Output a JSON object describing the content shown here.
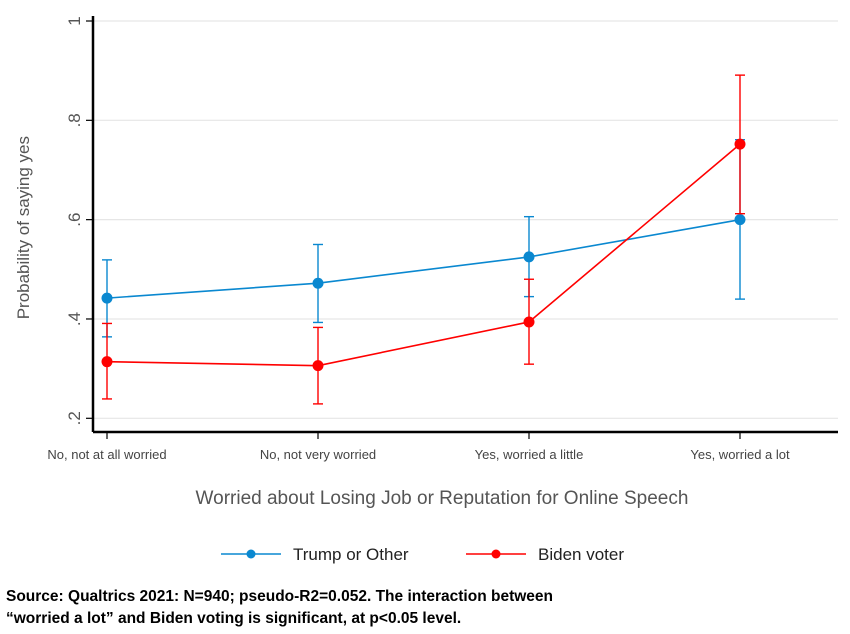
{
  "chart_data": {
    "type": "line",
    "xlabel": "Worried about Losing Job or Reputation for Online Speech",
    "ylabel": "Probability of saying yes",
    "categories": [
      "No, not at all worried",
      "No, not very worried",
      "Yes, worried a little",
      "Yes, worried a lot"
    ],
    "ylim": [
      0.2,
      1
    ],
    "yticks": [
      0.2,
      0.4,
      0.6,
      0.8,
      1
    ],
    "ytick_labels": [
      ".2",
      ".4",
      ".6",
      ".8",
      "1"
    ],
    "grid": true,
    "legend_position": "bottom",
    "series": [
      {
        "name": "Trump or Other",
        "color": "#0a88d0",
        "values": [
          0.442,
          0.472,
          0.525,
          0.6
        ],
        "lower": [
          0.364,
          0.393,
          0.445,
          0.44
        ],
        "upper": [
          0.519,
          0.55,
          0.606,
          0.761
        ]
      },
      {
        "name": "Biden voter",
        "color": "#ff0000",
        "values": [
          0.314,
          0.306,
          0.394,
          0.752
        ],
        "lower": [
          0.239,
          0.229,
          0.309,
          0.612
        ],
        "upper": [
          0.391,
          0.383,
          0.48,
          0.891
        ]
      }
    ]
  },
  "note": {
    "line1": "Source: Qualtrics 2021: N=940; pseudo-R2=0.052. The interaction between",
    "line2": "“worried a lot” and Biden voting is significant, at p<0.05 level."
  }
}
